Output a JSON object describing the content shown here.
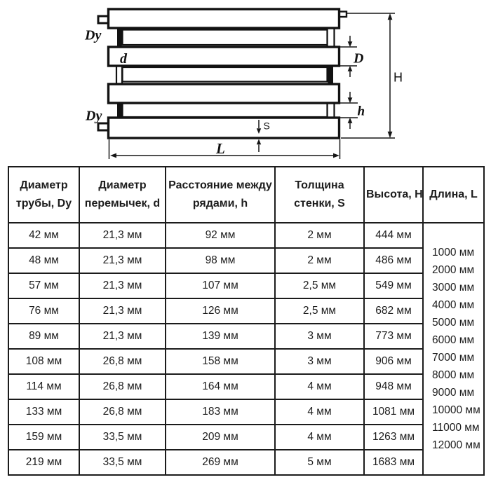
{
  "diagram": {
    "labels": {
      "dy_top": "Dy",
      "dy_bottom": "Dy",
      "d_small": "d",
      "d_big": "D",
      "h_small": "h",
      "h_big": "H",
      "s": "S",
      "l": "L"
    }
  },
  "table": {
    "headers": [
      [
        "Диаметр",
        "трубы, Dy"
      ],
      [
        "Диаметр",
        "перемычек, d"
      ],
      [
        "Расстояние между",
        "рядами, h"
      ],
      [
        "Толщина",
        "стенки, S"
      ],
      [
        "Высота, H"
      ],
      [
        "Длина, L"
      ]
    ],
    "rows": [
      [
        "42 мм",
        "21,3 мм",
        "92 мм",
        "2 мм",
        "444 мм"
      ],
      [
        "48 мм",
        "21,3 мм",
        "98 мм",
        "2 мм",
        "486 мм"
      ],
      [
        "57 мм",
        "21,3 мм",
        "107 мм",
        "2,5 мм",
        "549 мм"
      ],
      [
        "76 мм",
        "21,3 мм",
        "126 мм",
        "2,5 мм",
        "682 мм"
      ],
      [
        "89 мм",
        "21,3 мм",
        "139 мм",
        "3 мм",
        "773 мм"
      ],
      [
        "108 мм",
        "26,8 мм",
        "158 мм",
        "3 мм",
        "906 мм"
      ],
      [
        "114 мм",
        "26,8 мм",
        "164 мм",
        "4 мм",
        "948 мм"
      ],
      [
        "133 мм",
        "26,8 мм",
        "183 мм",
        "4 мм",
        "1081 мм"
      ],
      [
        "159 мм",
        "33,5 мм",
        "209 мм",
        "4 мм",
        "1263 мм"
      ],
      [
        "219 мм",
        "33,5 мм",
        "269 мм",
        "5 мм",
        "1683 мм"
      ]
    ],
    "lengths": [
      "1000 мм",
      "2000 мм",
      "3000 мм",
      "4000 мм",
      "5000 мм",
      "6000 мм",
      "7000 мм",
      "8000 мм",
      "9000 мм",
      "10000 мм",
      "11000 мм",
      "12000 мм"
    ]
  },
  "colors": {
    "line": "#121212",
    "text": "#1d1d1d",
    "background": "#ffffff"
  }
}
